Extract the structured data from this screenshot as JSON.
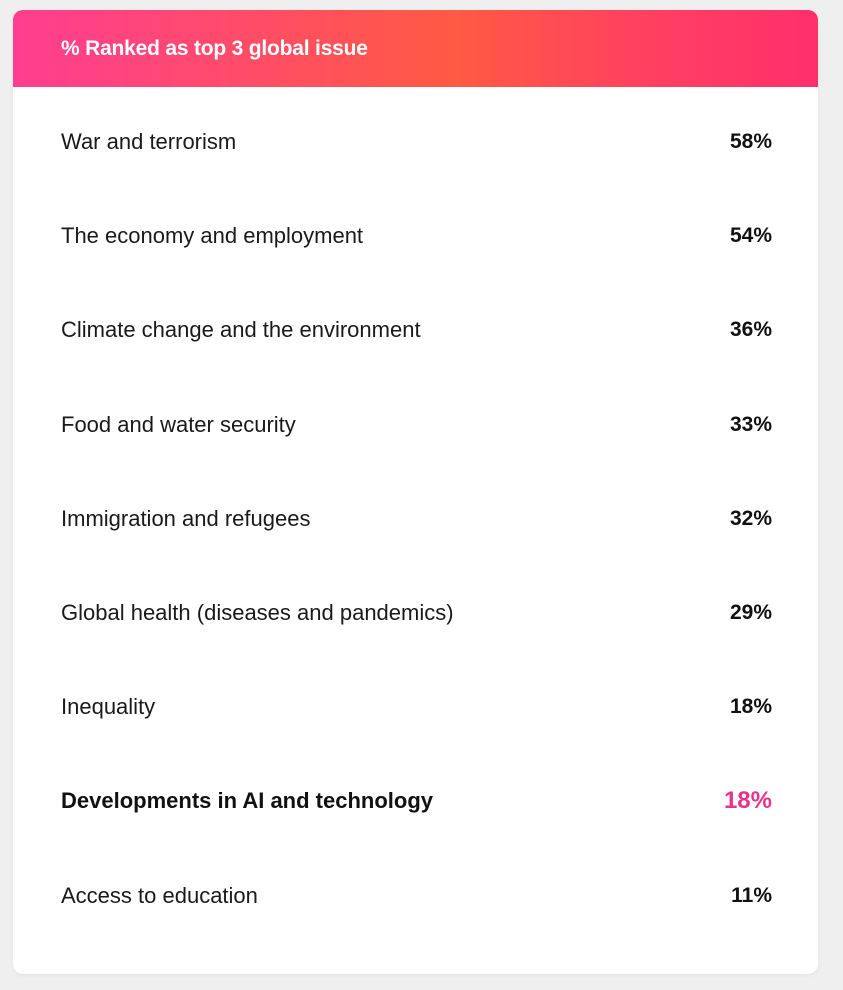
{
  "header": {
    "title": "% Ranked as top 3 global issue"
  },
  "colors": {
    "highlight": "#e8338a",
    "header_gradient_start": "#ff3d91",
    "header_gradient_end": "#ff2f6b"
  },
  "rows": [
    {
      "label": "War and terrorism",
      "value": "58%"
    },
    {
      "label": "The economy and employment",
      "value": "54%"
    },
    {
      "label": "Climate change and the environment",
      "value": "36%"
    },
    {
      "label": "Food and water security",
      "value": "33%"
    },
    {
      "label": "Immigration and refugees",
      "value": "32%"
    },
    {
      "label": "Global health (diseases and pandemics)",
      "value": "29%"
    },
    {
      "label": "Inequality",
      "value": "18%"
    },
    {
      "label": "Developments in AI and technology",
      "value": "18%",
      "highlighted": true
    },
    {
      "label": "Access to education",
      "value": "11%"
    }
  ],
  "chart_data": {
    "type": "table",
    "title": "% Ranked as top 3 global issue",
    "categories": [
      "War and terrorism",
      "The economy and employment",
      "Climate change and the environment",
      "Food and water security",
      "Immigration and refugees",
      "Global health (diseases and pandemics)",
      "Inequality",
      "Developments in AI and technology",
      "Access to education"
    ],
    "values": [
      58,
      54,
      36,
      33,
      32,
      29,
      18,
      18,
      11
    ],
    "highlighted_category": "Developments in AI and technology"
  }
}
